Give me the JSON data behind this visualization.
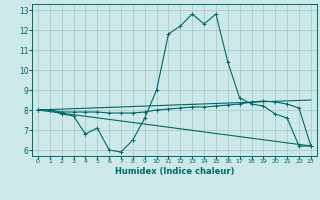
{
  "title": "",
  "xlabel": "Humidex (Indice chaleur)",
  "ylabel": "",
  "background_color": "#cce8e8",
  "grid_color": "#b0d0d0",
  "line_color": "#006868",
  "xlim": [
    -0.5,
    23.5
  ],
  "ylim": [
    5.7,
    13.3
  ],
  "yticks": [
    6,
    7,
    8,
    9,
    10,
    11,
    12,
    13
  ],
  "xticks": [
    0,
    1,
    2,
    3,
    4,
    5,
    6,
    7,
    8,
    9,
    10,
    11,
    12,
    13,
    14,
    15,
    16,
    17,
    18,
    19,
    20,
    21,
    22,
    23
  ],
  "lines": [
    {
      "x": [
        0,
        1,
        2,
        3,
        4,
        5,
        6,
        7,
        8,
        9,
        10,
        11,
        12,
        13,
        14,
        15,
        16,
        17,
        18,
        19,
        20,
        21,
        22,
        23
      ],
      "y": [
        8.0,
        8.0,
        7.8,
        7.7,
        6.8,
        7.1,
        6.0,
        5.9,
        6.5,
        7.6,
        9.0,
        11.8,
        12.2,
        12.8,
        12.3,
        12.8,
        10.4,
        8.6,
        8.3,
        8.2,
        7.8,
        7.6,
        6.2,
        6.2
      ],
      "marker": true
    },
    {
      "x": [
        0,
        1,
        2,
        3,
        4,
        5,
        6,
        7,
        8,
        9,
        10,
        11,
        12,
        13,
        14,
        15,
        16,
        17,
        18,
        19,
        20,
        21,
        22,
        23
      ],
      "y": [
        8.0,
        8.0,
        7.9,
        7.9,
        7.9,
        7.9,
        7.85,
        7.85,
        7.85,
        7.9,
        8.0,
        8.05,
        8.1,
        8.15,
        8.15,
        8.2,
        8.25,
        8.3,
        8.4,
        8.45,
        8.4,
        8.3,
        8.1,
        6.2
      ],
      "marker": true
    },
    {
      "x": [
        0,
        23
      ],
      "y": [
        8.0,
        6.2
      ],
      "marker": false
    },
    {
      "x": [
        0,
        23
      ],
      "y": [
        8.0,
        8.5
      ],
      "marker": false
    }
  ]
}
